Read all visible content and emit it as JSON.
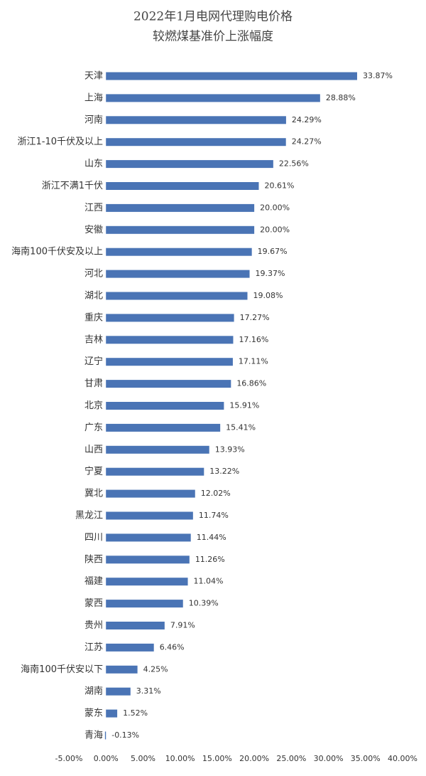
{
  "chart_data": {
    "type": "bar",
    "orientation": "horizontal",
    "title": "2022年1月电网代理购电价格",
    "subtitle": "较燃煤基准价上涨幅度",
    "categories": [
      "天津",
      "上海",
      "河南",
      "浙江1-10千伏及以上",
      "山东",
      "浙江不满1千伏",
      "江西",
      "安徽",
      "海南100千伏安及以上",
      "河北",
      "湖北",
      "重庆",
      "吉林",
      "辽宁",
      "甘肃",
      "北京",
      "广东",
      "山西",
      "宁夏",
      "冀北",
      "黑龙江",
      "四川",
      "陕西",
      "福建",
      "蒙西",
      "贵州",
      "江苏",
      "海南100千伏安以下",
      "湖南",
      "蒙东",
      "青海"
    ],
    "values": [
      33.87,
      28.88,
      24.29,
      24.27,
      22.56,
      20.61,
      20.0,
      20.0,
      19.67,
      19.37,
      19.08,
      17.27,
      17.16,
      17.11,
      16.86,
      15.91,
      15.41,
      13.93,
      13.22,
      12.02,
      11.74,
      11.44,
      11.26,
      11.04,
      10.39,
      7.91,
      6.46,
      4.25,
      3.31,
      1.52,
      -0.13
    ],
    "value_labels": [
      "33.87%",
      "28.88%",
      "24.29%",
      "24.27%",
      "22.56%",
      "20.61%",
      "20.00%",
      "20.00%",
      "19.67%",
      "19.37%",
      "19.08%",
      "17.27%",
      "17.16%",
      "17.11%",
      "16.86%",
      "15.91%",
      "15.41%",
      "13.93%",
      "13.22%",
      "12.02%",
      "11.74%",
      "11.44%",
      "11.26%",
      "11.04%",
      "10.39%",
      "7.91%",
      "6.46%",
      "4.25%",
      "3.31%",
      "1.52%",
      "-0.13%"
    ],
    "color": "#4a74b5",
    "xlim": [
      -5,
      40
    ],
    "xticks": [
      {
        "value": -5,
        "label": "-5.00%"
      },
      {
        "value": 0,
        "label": "0.00%"
      },
      {
        "value": 5,
        "label": "5.00%"
      },
      {
        "value": 10,
        "label": "10.00%"
      },
      {
        "value": 15,
        "label": "15.00%"
      },
      {
        "value": 20,
        "label": "20.00%"
      },
      {
        "value": 25,
        "label": "25.00%"
      },
      {
        "value": 30,
        "label": "30.00%"
      },
      {
        "value": 35,
        "label": "35.00%"
      },
      {
        "value": 40,
        "label": "40.00%"
      }
    ],
    "grid": false
  }
}
